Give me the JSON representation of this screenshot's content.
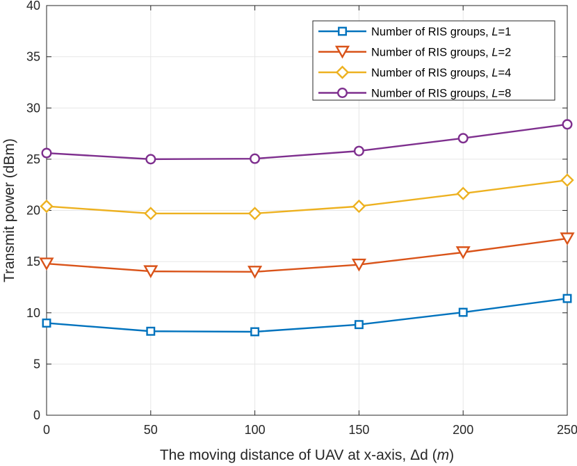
{
  "chart_data": {
    "type": "line",
    "title": "",
    "xlabel_parts": [
      "The moving distance of UAV at x-axis, ",
      "Δ",
      "d (",
      "m",
      ")"
    ],
    "ylabel": "Transmit power (dBm)",
    "xlim": [
      0,
      250
    ],
    "ylim": [
      0,
      40
    ],
    "xticks": [
      0,
      50,
      100,
      150,
      200,
      250
    ],
    "yticks": [
      0,
      5,
      10,
      15,
      20,
      25,
      30,
      35,
      40
    ],
    "xtick_labels": [
      "0",
      "50",
      "100",
      "150",
      "200",
      "250"
    ],
    "ytick_labels": [
      "0",
      "5",
      "10",
      "15",
      "20",
      "25",
      "30",
      "35",
      "40"
    ],
    "grid": true,
    "legend_position": "top-right",
    "x": [
      0,
      50,
      100,
      150,
      200,
      250
    ],
    "series": [
      {
        "name": "Number of RIS groups, ",
        "param": "L",
        "param_value": "=1",
        "marker": "square",
        "color": "#0072BD",
        "values": [
          9.0,
          8.2,
          8.15,
          8.85,
          10.05,
          11.4
        ]
      },
      {
        "name": "Number of RIS groups, ",
        "param": "L",
        "param_value": "=2",
        "marker": "triangle-down",
        "color": "#D95319",
        "values": [
          14.8,
          14.05,
          14.0,
          14.7,
          15.9,
          17.25
        ]
      },
      {
        "name": "Number of RIS groups, ",
        "param": "L",
        "param_value": "=4",
        "marker": "diamond",
        "color": "#EDB120",
        "values": [
          20.4,
          19.7,
          19.7,
          20.4,
          21.65,
          22.95
        ]
      },
      {
        "name": "Number of RIS groups, ",
        "param": "L",
        "param_value": "=8",
        "marker": "circle",
        "color": "#7E2F8E",
        "values": [
          25.6,
          25.0,
          25.05,
          25.8,
          27.05,
          28.4
        ]
      }
    ]
  }
}
